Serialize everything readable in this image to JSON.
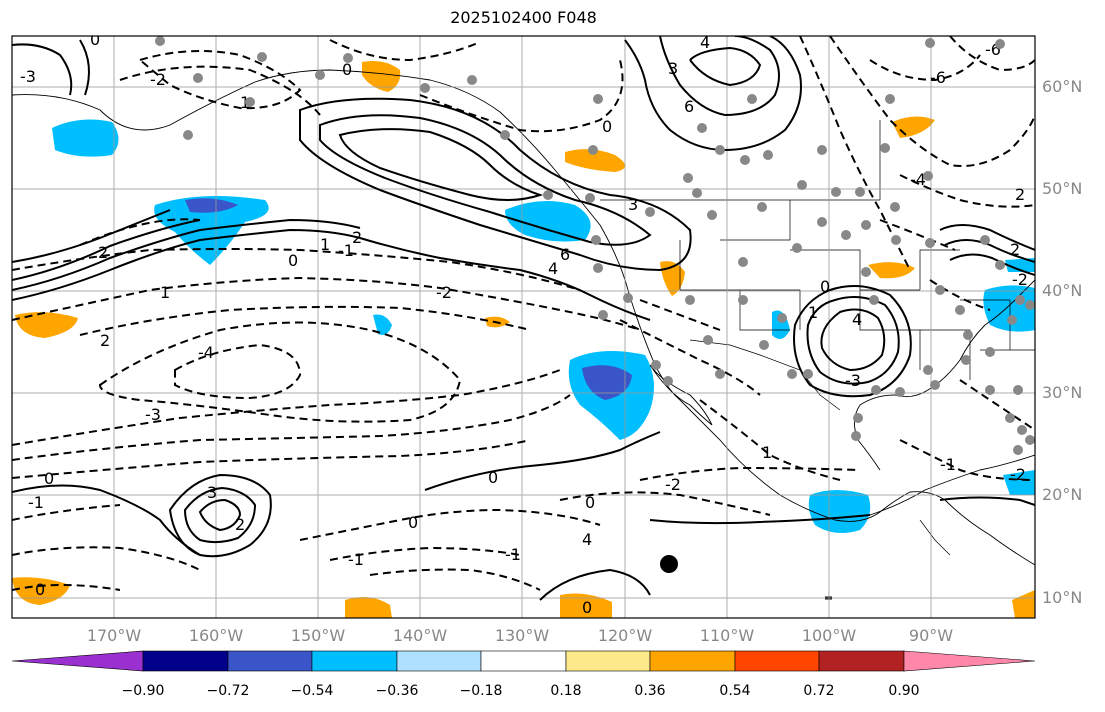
{
  "title": "2025102400 F048",
  "map": {
    "projection": "lat-lon",
    "lat_labels": [
      "60°N",
      "50°N",
      "40°N",
      "30°N",
      "20°N",
      "10°N"
    ],
    "lon_labels": [
      "170°W",
      "160°W",
      "150°W",
      "140°W",
      "130°W",
      "120°W",
      "110°W",
      "100°W",
      "90°W"
    ],
    "contour_labels": [
      "2",
      "0",
      "1",
      "-1",
      "2",
      "0",
      "3",
      "4",
      "6",
      "4",
      "0",
      "3",
      "2",
      "1",
      "0",
      "-1",
      "-2",
      "-4",
      "-3",
      "-3",
      "-1",
      "0",
      "1",
      "-2",
      "0",
      "-1",
      "0",
      "0",
      "2",
      "-4",
      "-6",
      "-6",
      "6",
      "4",
      "0",
      "2",
      "3",
      "4",
      "0",
      "2",
      "1",
      "-3",
      "-2",
      "0",
      "-1",
      "-2",
      "-2",
      "1"
    ],
    "grid": true
  },
  "colorbar": {
    "tick_labels": [
      "−0.90",
      "−0.72",
      "−0.54",
      "−0.36",
      "−0.18",
      "0.18",
      "0.36",
      "0.54",
      "0.72",
      "0.90"
    ],
    "colors": [
      "#9b30d0",
      "#00008b",
      "#3a55c8",
      "#00bfff",
      "#b0e0ff",
      "#ffffff",
      "#fde98a",
      "#ffa500",
      "#ff4500",
      "#b22222",
      "#ff88aa"
    ],
    "extend": "both"
  }
}
